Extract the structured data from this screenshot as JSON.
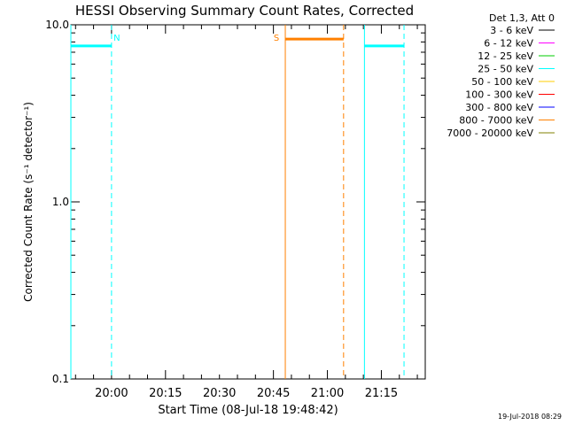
{
  "chart_data": {
    "type": "line",
    "title": "HESSI Observing Summary Count Rates, Corrected",
    "xlabel": "Start Time (08-Jul-18 19:48:42)",
    "ylabel": "Corrected Count Rate (s⁻¹ detector⁻¹)",
    "yscale": "log",
    "ylim": [
      0.1,
      10.0
    ],
    "ytick_labels": [
      "0.1",
      "1.0",
      "10.0"
    ],
    "xlim_minutes": [
      0,
      98.5
    ],
    "x_tick_labels": [
      "20:00",
      "20:15",
      "20:30",
      "20:45",
      "21:00",
      "21:15"
    ],
    "x_tick_minutes": [
      11.3,
      26.3,
      41.3,
      56.3,
      71.3,
      86.3
    ],
    "legend": {
      "header": "Det 1,3, Att 0",
      "placement": "right",
      "entries": [
        {
          "name": "3 - 6 keV",
          "color": "#000000"
        },
        {
          "name": "6 - 12 keV",
          "color": "#ff00ff"
        },
        {
          "name": "12 - 25 keV",
          "color": "#00cc00"
        },
        {
          "name": "25 - 50 keV",
          "color": "#00ffff"
        },
        {
          "name": "50 - 100 keV",
          "color": "#ffcc00"
        },
        {
          "name": "100 - 300 keV",
          "color": "#ff0000"
        },
        {
          "name": "300 - 800 keV",
          "color": "#0000ff"
        },
        {
          "name": "800 - 7000 keV",
          "color": "#ff8000"
        },
        {
          "name": "7000 - 20000 keV",
          "color": "#808000"
        }
      ]
    },
    "series": [
      {
        "name": "25 - 50 keV",
        "color": "#00ffff",
        "segments": [
          [
            0,
            11.3,
            7.6
          ],
          [
            81.6,
            92.6,
            7.6
          ]
        ]
      },
      {
        "name": "800 - 7000 keV",
        "color": "#ff8000",
        "segments": [
          [
            59.6,
            75.8,
            8.3
          ]
        ]
      }
    ],
    "markers": [
      {
        "label": "N",
        "start": 0,
        "end": 11.3,
        "color": "#00ffff"
      },
      {
        "label": "S",
        "start": 59.6,
        "end": 75.8,
        "color": "#ff8000"
      },
      {
        "label": "",
        "start": 81.6,
        "end": 92.6,
        "color": "#00ffff"
      }
    ],
    "footer": "19-Jul-2018 08:29"
  }
}
